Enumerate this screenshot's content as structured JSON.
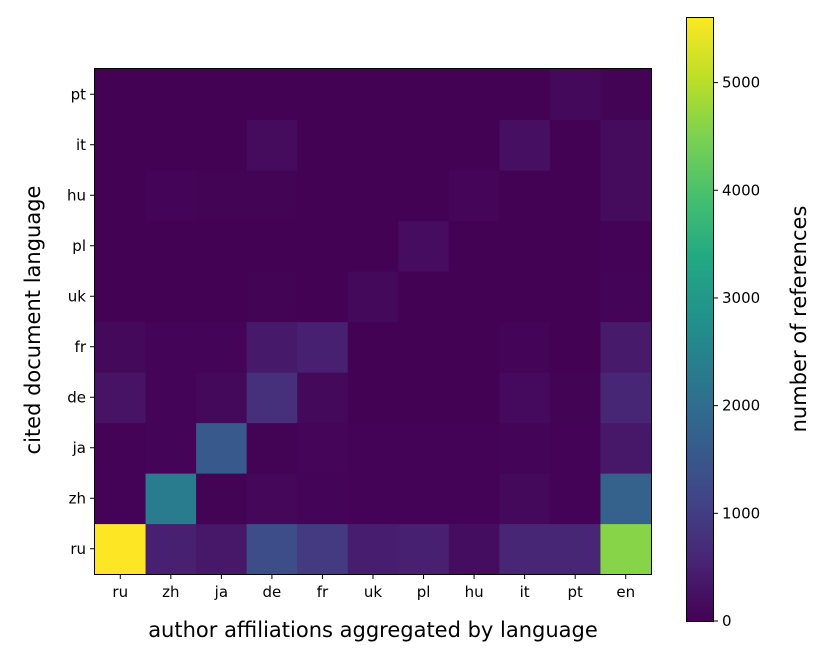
{
  "chart_data": {
    "type": "heatmap",
    "title": "",
    "xlabel": "author affiliations aggregated by language",
    "ylabel": "cited document language",
    "x_categories": [
      "ru",
      "zh",
      "ja",
      "de",
      "fr",
      "uk",
      "pl",
      "hu",
      "it",
      "pt",
      "en"
    ],
    "y_categories": [
      "ru",
      "zh",
      "ja",
      "de",
      "fr",
      "uk",
      "pl",
      "hu",
      "it",
      "pt"
    ],
    "values": [
      [
        5600,
        500,
        350,
        1300,
        950,
        450,
        500,
        200,
        600,
        600,
        4600
      ],
      [
        30,
        2300,
        40,
        100,
        50,
        30,
        30,
        30,
        120,
        30,
        1750
      ],
      [
        30,
        60,
        1550,
        40,
        70,
        30,
        30,
        30,
        60,
        30,
        350
      ],
      [
        280,
        50,
        120,
        750,
        120,
        20,
        20,
        20,
        150,
        40,
        600
      ],
      [
        120,
        50,
        50,
        380,
        500,
        20,
        20,
        20,
        50,
        20,
        400
      ],
      [
        20,
        20,
        20,
        40,
        20,
        130,
        20,
        20,
        20,
        20,
        60
      ],
      [
        20,
        20,
        20,
        20,
        20,
        20,
        180,
        20,
        20,
        20,
        30
      ],
      [
        20,
        50,
        40,
        40,
        20,
        20,
        20,
        80,
        20,
        20,
        160
      ],
      [
        20,
        20,
        20,
        170,
        20,
        20,
        20,
        20,
        220,
        20,
        160
      ],
      [
        20,
        20,
        20,
        20,
        20,
        20,
        20,
        20,
        20,
        130,
        40
      ]
    ],
    "colorbar": {
      "label": "number of references",
      "colormap": "viridis",
      "range": [
        0,
        5600
      ],
      "ticks": [
        0,
        1000,
        2000,
        3000,
        4000,
        5000
      ]
    },
    "grid": false
  }
}
